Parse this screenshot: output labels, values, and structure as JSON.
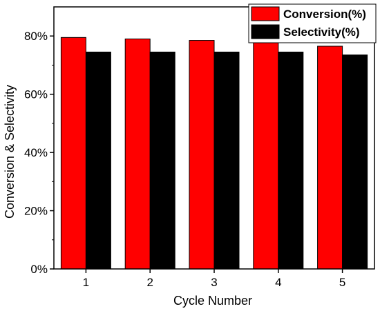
{
  "chart_data": {
    "type": "bar",
    "categories": [
      "1",
      "2",
      "3",
      "4",
      "5"
    ],
    "series": [
      {
        "name": "Conversion(%)",
        "values": [
          79.5,
          79.0,
          78.5,
          78.0,
          76.5
        ],
        "color": "#ff0000"
      },
      {
        "name": "Selectivity(%)",
        "values": [
          74.5,
          74.5,
          74.5,
          74.5,
          73.5
        ],
        "color": "#000000"
      }
    ],
    "title": "",
    "xlabel": "Cycle Number",
    "ylabel": "Conversion & Selectivity",
    "ylim": [
      0,
      90
    ],
    "yticks": [
      {
        "value": 0,
        "label": "0%"
      },
      {
        "value": 20,
        "label": "20%"
      },
      {
        "value": 40,
        "label": "40%"
      },
      {
        "value": 60,
        "label": "60%"
      },
      {
        "value": 80,
        "label": "80%"
      }
    ],
    "grid": false,
    "legend_position": "top-right"
  }
}
